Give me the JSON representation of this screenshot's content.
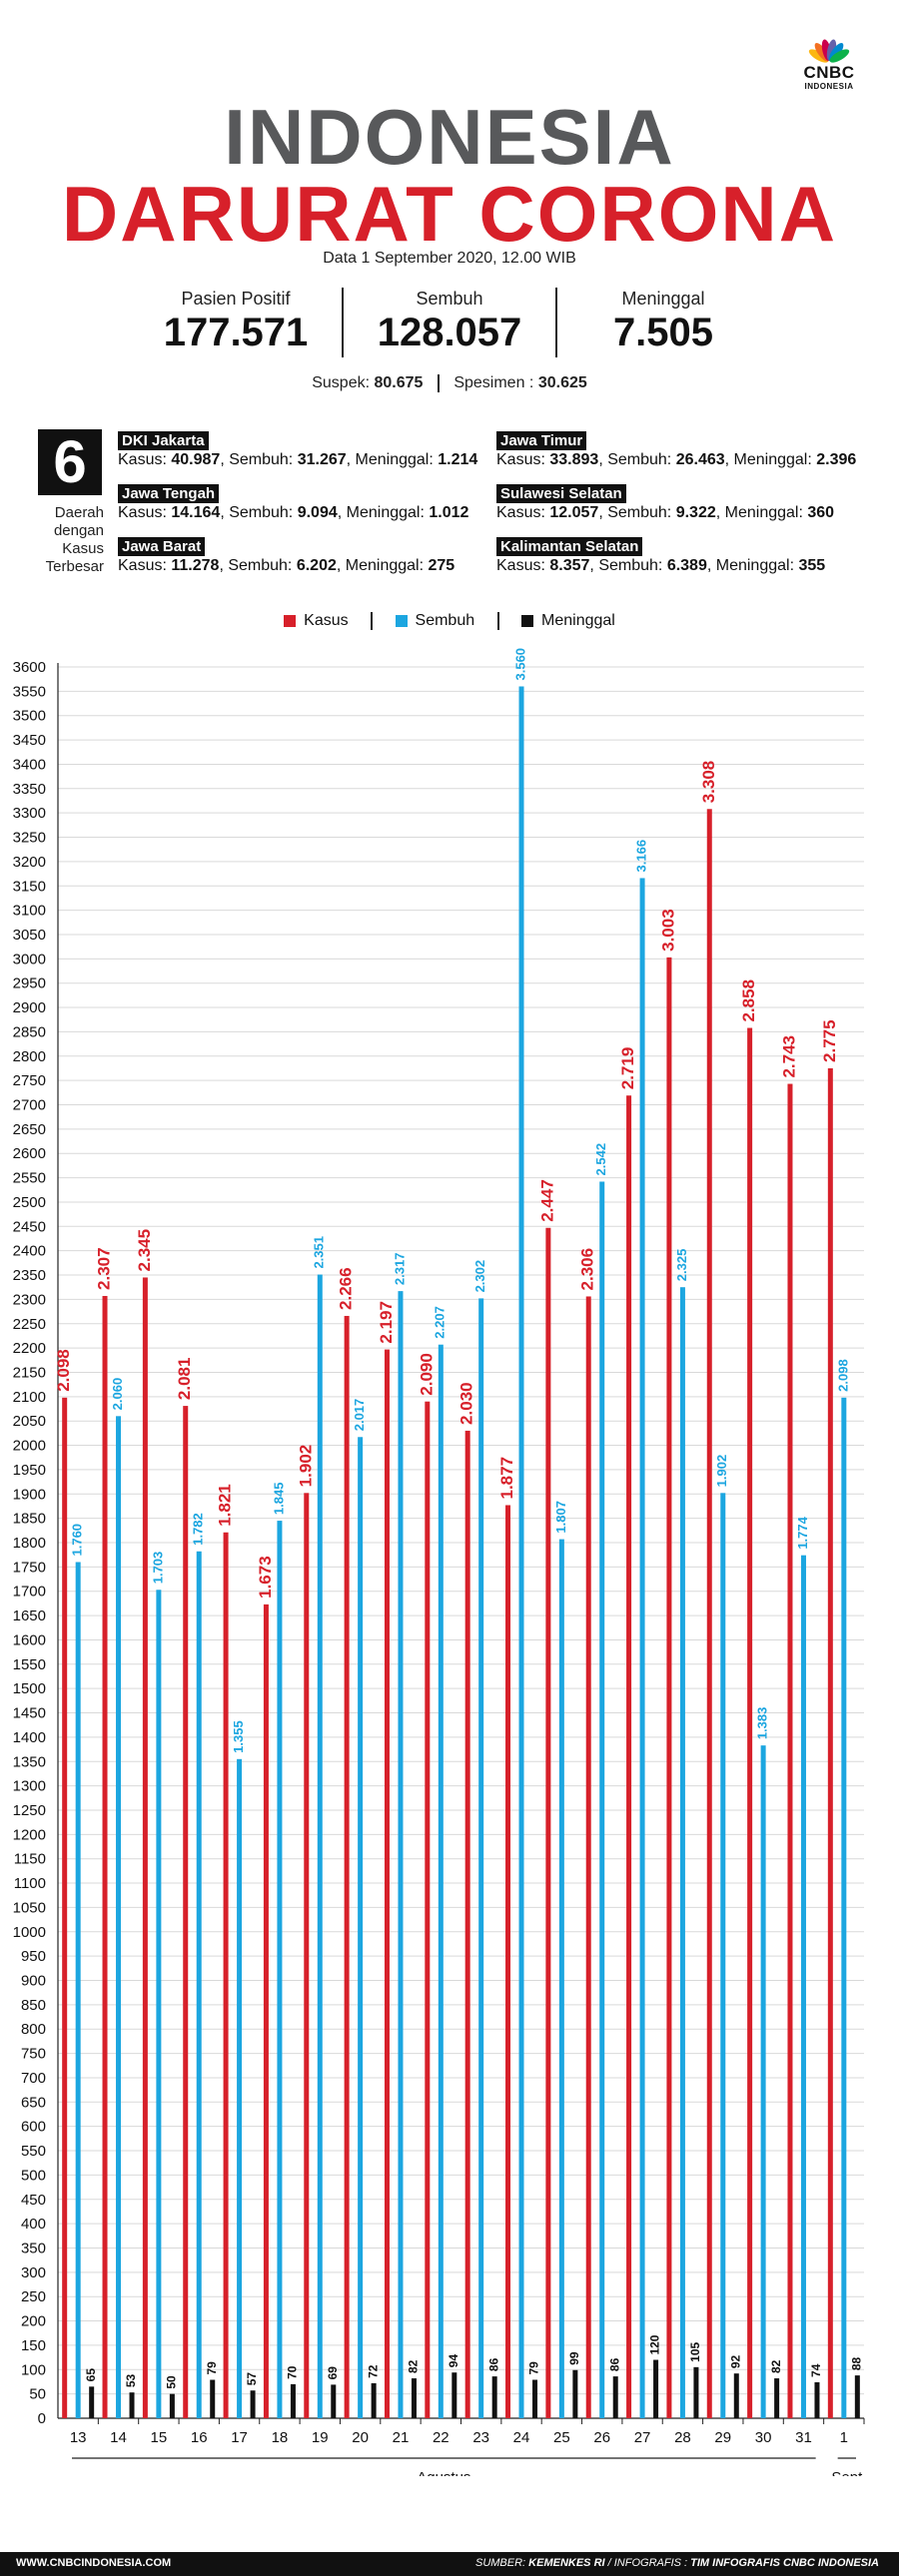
{
  "brand": {
    "logo_text": "CNBC",
    "logo_subtext": "INDONESIA",
    "colors": [
      "#fcb711",
      "#f37021",
      "#cc004c",
      "#6460aa",
      "#0089d0",
      "#0db14b"
    ]
  },
  "title": {
    "line1": "INDONESIA",
    "line2": "DARURAT CORONA"
  },
  "data_date": "Data 1 September 2020, 12.00 WIB",
  "summary": {
    "positive_label": "Pasien Positif",
    "positive_value": "177.571",
    "recovered_label": "Sembuh",
    "recovered_value": "128.057",
    "died_label": "Meninggal",
    "died_value": "7.505"
  },
  "sub_summary": {
    "suspect_label": "Suspek:",
    "suspect_value": "80.675",
    "specimen_label": "Spesimen :",
    "specimen_value": "30.625"
  },
  "top_regions": {
    "count": "6",
    "caption": [
      "Daerah",
      "dengan",
      "Kasus",
      "Terbesar"
    ],
    "items": [
      {
        "name": "DKI Jakarta",
        "kasus_label": "Kasus:",
        "kasus": "40.987",
        "sembuh_label": ", Sembuh:",
        "sembuh": "31.267",
        "meninggal_label": ", Meninggal:",
        "meninggal": "1.214"
      },
      {
        "name": "Jawa Tengah",
        "kasus_label": "Kasus:",
        "kasus": "14.164",
        "sembuh_label": ", Sembuh:",
        "sembuh": "9.094",
        "meninggal_label": ", Meninggal:",
        "meninggal": "1.012"
      },
      {
        "name": "Jawa Barat",
        "kasus_label": "Kasus:",
        "kasus": "11.278",
        "sembuh_label": ", Sembuh:",
        "sembuh": "6.202",
        "meninggal_label": ", Meninggal:",
        "meninggal": "275"
      },
      {
        "name": "Jawa Timur",
        "kasus_label": "Kasus:",
        "kasus": "33.893",
        "sembuh_label": ", Sembuh:",
        "sembuh": "26.463",
        "meninggal_label": ", Meninggal:",
        "meninggal": "2.396"
      },
      {
        "name": "Sulawesi Selatan",
        "kasus_label": "Kasus:",
        "kasus": "12.057",
        "sembuh_label": ", Sembuh:",
        "sembuh": "9.322",
        "meninggal_label": ", Meninggal:",
        "meninggal": "360"
      },
      {
        "name": "Kalimantan Selatan",
        "kasus_label": "Kasus:",
        "kasus": "8.357",
        "sembuh_label": ", Sembuh:",
        "sembuh": "6.389",
        "meninggal_label": ", Meninggal:",
        "meninggal": "355"
      }
    ]
  },
  "legend": {
    "kasus": "Kasus",
    "sembuh": "Sembuh",
    "meninggal": "Meninggal"
  },
  "chart_data": {
    "type": "bar",
    "categories": [
      "13",
      "14",
      "15",
      "16",
      "17",
      "18",
      "19",
      "20",
      "21",
      "22",
      "23",
      "24",
      "25",
      "26",
      "27",
      "28",
      "29",
      "30",
      "31",
      "1"
    ],
    "series": [
      {
        "name": "Kasus",
        "color": "#d7202a",
        "values": [
          2098,
          2307,
          2345,
          2081,
          1821,
          1673,
          1902,
          2266,
          2197,
          2090,
          2030,
          1877,
          2447,
          2306,
          2719,
          3003,
          3308,
          2858,
          2743,
          2775
        ],
        "labels": [
          "2.098",
          "2.307",
          "2.345",
          "2.081",
          "1.821",
          "1.673",
          "1.902",
          "2.266",
          "2.197",
          "2.090",
          "2.030",
          "1.877",
          "2.447",
          "2.306",
          "2.719",
          "3.003",
          "3.308",
          "2.858",
          "2.743",
          "2.775"
        ]
      },
      {
        "name": "Sembuh",
        "color": "#1ca6e0",
        "values": [
          1760,
          2060,
          1703,
          1782,
          1355,
          1845,
          2351,
          2017,
          2317,
          2207,
          2302,
          3560,
          1807,
          2542,
          3166,
          2325,
          1902,
          1383,
          1774,
          2098
        ],
        "labels": [
          "1.760",
          "2.060",
          "1.703",
          "1.782",
          "1.355",
          "1.845",
          "2.351",
          "2.017",
          "2.317",
          "2.207",
          "2.302",
          "3.560",
          "1.807",
          "2.542",
          "3.166",
          "2.325",
          "1.902",
          "1.383",
          "1.774",
          "2.098"
        ]
      },
      {
        "name": "Meninggal",
        "color": "#111111",
        "values": [
          65,
          53,
          50,
          79,
          57,
          70,
          69,
          72,
          82,
          94,
          86,
          79,
          99,
          86,
          120,
          105,
          92,
          82,
          74,
          88
        ],
        "labels": [
          "65",
          "53",
          "50",
          "79",
          "57",
          "70",
          "69",
          "72",
          "82",
          "94",
          "86",
          "79",
          "99",
          "86",
          "120",
          "105",
          "92",
          "82",
          "74",
          "88"
        ]
      }
    ],
    "ylim": [
      0,
      3600
    ],
    "y_ticks": [
      "0",
      "50",
      "100",
      "150",
      "200",
      "250",
      "300",
      "350",
      "400",
      "450",
      "500",
      "550",
      "600",
      "650",
      "700",
      "750",
      "800",
      "850",
      "900",
      "950",
      "1000",
      "1050",
      "1100",
      "1150",
      "1200",
      "1250",
      "1300",
      "1350",
      "1400",
      "1450",
      "1500",
      "1550",
      "1600",
      "1650",
      "1700",
      "1750",
      "1800",
      "1850",
      "1900",
      "1950",
      "2000",
      "2050",
      "2100",
      "2150",
      "2200",
      "2250",
      "2300",
      "2350",
      "2400",
      "2450",
      "2500",
      "2550",
      "2600",
      "2650",
      "2700",
      "2750",
      "2800",
      "2850",
      "2900",
      "2950",
      "3000",
      "3050",
      "3100",
      "3150",
      "3200",
      "3250",
      "3300",
      "3350",
      "3400",
      "3450",
      "3500",
      "3550",
      "3600"
    ],
    "month_groups": [
      {
        "label": "Agustus",
        "count": 19
      },
      {
        "label": "Sept",
        "count": 1
      }
    ],
    "grid": true
  },
  "footer": {
    "website": "WWW.CNBCINDONESIA.COM",
    "source_label": "SUMBER:",
    "source": "KEMENKES RI",
    "separator": "/ INFOGRAFIS :",
    "credit": "TIM INFOGRAFIS CNBC INDONESIA"
  }
}
